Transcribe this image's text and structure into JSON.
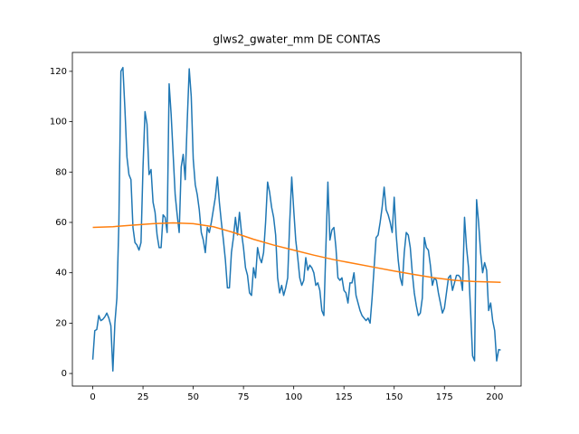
{
  "chart_data": {
    "type": "line",
    "title": "glws2_gwater_mm DE CONTAS",
    "xlim": [
      -10.15,
      213.15
    ],
    "ylim": [
      -5.0,
      127.5
    ],
    "xticks": [
      0,
      25,
      50,
      75,
      100,
      125,
      150,
      175,
      200
    ],
    "yticks": [
      0,
      20,
      40,
      60,
      80,
      100,
      120
    ],
    "series": [
      {
        "color": "#1f77b4",
        "x": [
          0,
          1,
          2,
          3,
          4,
          5,
          6,
          7,
          8,
          9,
          10,
          11,
          12,
          13,
          14,
          15,
          16,
          17,
          18,
          19,
          20,
          21,
          22,
          23,
          24,
          25,
          26,
          27,
          28,
          29,
          30,
          31,
          32,
          33,
          34,
          35,
          36,
          37,
          38,
          39,
          40,
          41,
          42,
          43,
          44,
          45,
          46,
          47,
          48,
          49,
          50,
          51,
          52,
          53,
          54,
          55,
          56,
          57,
          58,
          59,
          60,
          61,
          62,
          63,
          64,
          65,
          66,
          67,
          68,
          69,
          70,
          71,
          72,
          73,
          74,
          75,
          76,
          77,
          78,
          79,
          80,
          81,
          82,
          83,
          84,
          85,
          86,
          87,
          88,
          89,
          90,
          91,
          92,
          93,
          94,
          95,
          96,
          97,
          98,
          99,
          100,
          101,
          102,
          103,
          104,
          105,
          106,
          107,
          108,
          109,
          110,
          111,
          112,
          113,
          114,
          115,
          116,
          117,
          118,
          119,
          120,
          121,
          122,
          123,
          124,
          125,
          126,
          127,
          128,
          129,
          130,
          131,
          132,
          133,
          134,
          135,
          136,
          137,
          138,
          139,
          140,
          141,
          142,
          143,
          144,
          145,
          146,
          147,
          148,
          149,
          150,
          151,
          152,
          153,
          154,
          155,
          156,
          157,
          158,
          159,
          160,
          161,
          162,
          163,
          164,
          165,
          166,
          167,
          168,
          169,
          170,
          171,
          172,
          173,
          174,
          175,
          176,
          177,
          178,
          179,
          180,
          181,
          182,
          183,
          184,
          185,
          186,
          187,
          188,
          189,
          190,
          191,
          192,
          193,
          194,
          195,
          196,
          197,
          198,
          199,
          200,
          201,
          202,
          203
        ],
        "values": [
          5.5,
          17,
          17.5,
          23,
          21,
          21.5,
          22.5,
          24,
          22,
          19,
          1,
          20,
          30,
          60,
          120,
          121.5,
          105,
          86,
          79,
          77,
          58,
          52,
          51,
          49,
          52,
          82,
          104,
          99,
          79,
          81,
          68,
          64,
          55,
          50,
          50,
          63,
          62,
          56,
          115,
          103,
          87,
          71,
          63,
          56,
          82,
          87,
          77,
          100,
          121,
          110,
          85,
          75,
          71,
          65,
          56,
          53,
          48,
          58,
          56,
          60,
          65,
          70,
          78,
          68,
          60,
          53,
          45,
          34,
          34,
          48,
          54,
          62,
          55,
          64,
          56,
          50,
          42,
          39,
          32,
          31,
          42,
          38,
          50,
          46,
          44,
          48,
          60,
          76,
          72,
          66,
          62,
          55,
          38,
          32,
          35,
          31,
          34,
          38,
          60,
          78,
          65,
          53,
          46,
          38,
          35,
          37,
          46,
          41,
          43,
          42,
          40,
          35,
          36,
          33,
          25,
          23,
          50,
          76,
          53,
          57,
          58,
          50,
          38,
          37,
          38,
          33,
          32,
          28,
          36,
          36,
          40,
          31,
          28,
          25,
          23,
          22,
          21,
          22,
          20,
          30,
          42,
          54,
          55,
          60,
          66,
          74,
          65,
          63,
          60,
          56,
          70,
          55,
          45,
          38,
          35,
          48,
          56,
          55,
          50,
          40,
          32,
          27,
          23,
          24,
          30,
          54,
          50,
          49,
          43,
          35,
          38,
          37,
          32,
          28,
          24,
          26,
          32,
          38,
          39,
          33,
          36,
          39,
          39,
          38,
          33,
          62,
          50,
          42,
          25,
          7,
          5,
          69,
          60,
          48,
          40,
          44,
          41,
          25,
          28,
          21,
          17,
          5,
          9.5,
          9.3
        ]
      },
      {
        "color": "#ff7f0e",
        "x": [
          0,
          10,
          20,
          30,
          40,
          50,
          60,
          70,
          80,
          90,
          100,
          110,
          120,
          130,
          140,
          150,
          160,
          170,
          180,
          190,
          200,
          203
        ],
        "values": [
          58,
          58.3,
          58.9,
          59.5,
          59.8,
          59.5,
          58.3,
          56,
          53.3,
          51,
          49,
          47,
          45.2,
          43.7,
          42.2,
          40.7,
          39.3,
          38,
          37,
          36.5,
          36.3,
          36.2
        ]
      }
    ]
  }
}
